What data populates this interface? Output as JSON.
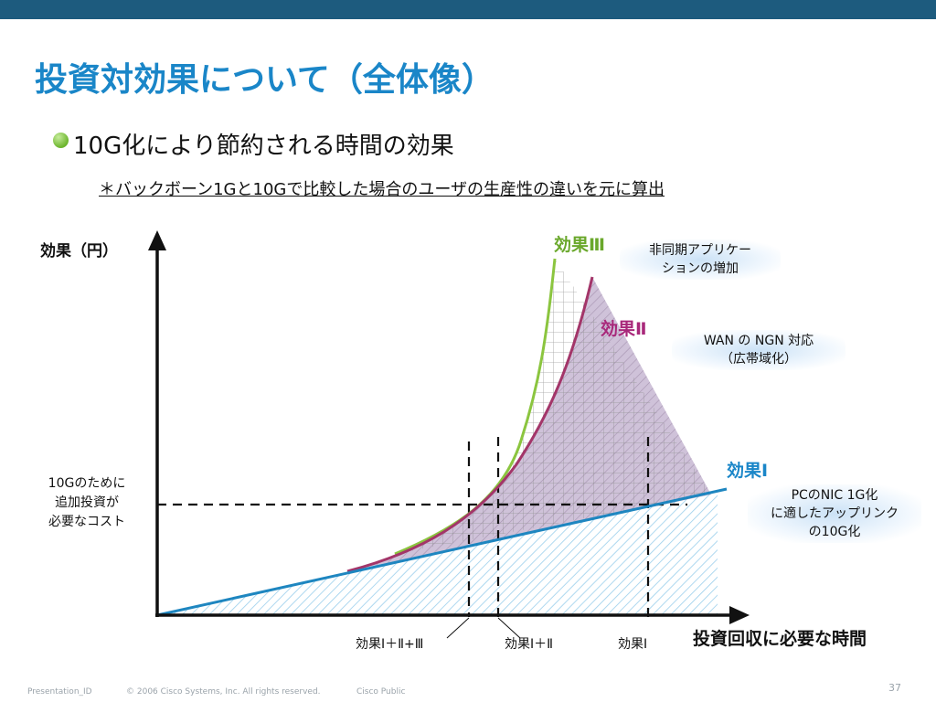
{
  "slide": {
    "title": "投資対効果について（全体像）",
    "bullet": "10G化により節約される時間の効果",
    "note": "＊バックボーン1Gと10Gで比較した場合のユーザの生産性の違いを元に算出",
    "accent_color": "#1a86c8",
    "bullet_color": "#7ac143"
  },
  "diagram": {
    "y_axis_label": "効果（円）",
    "x_axis_label": "投資回収に必要な時間",
    "cost_label": "10Gのために\n追加投資が\n必要なコスト",
    "effect3": {
      "title": "効果Ⅲ",
      "desc": "非同期アプリケー\nションの増加",
      "color": "#6aa82b"
    },
    "effect2": {
      "title": "効果Ⅱ",
      "desc": "WAN の NGN 対応\n（広帯域化）",
      "color": "#a8287a"
    },
    "effect1": {
      "title": "効果Ⅰ",
      "desc": "PCのNIC 1G化\nに適したアップリンク\nの10G化",
      "color": "#1a86c8"
    },
    "bottom_labels": [
      "効果Ⅰ＋Ⅱ+Ⅲ",
      "効果Ⅰ＋Ⅱ",
      "効果Ⅰ"
    ]
  },
  "footer": {
    "presentation_id": "Presentation_ID",
    "copyright": "© 2006 Cisco Systems, Inc. All rights reserved.",
    "classification": "Cisco Public",
    "page_number": "37"
  }
}
